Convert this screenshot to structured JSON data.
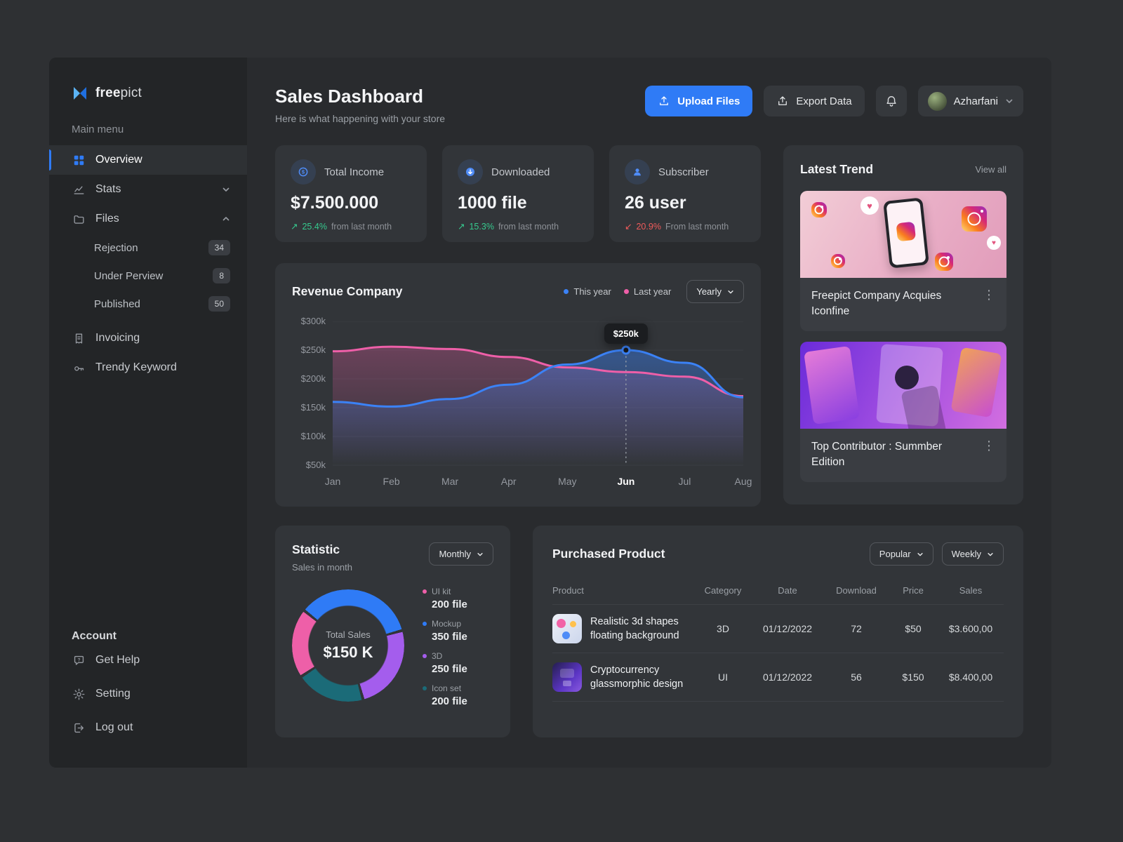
{
  "colors": {
    "accent": "#2f7bf6",
    "green": "#36c98e",
    "red": "#ef5b5b",
    "chart_blue": "#3b82f6",
    "chart_pink": "#ee5fa8"
  },
  "sidebar": {
    "brand": {
      "bold": "free",
      "light": "pict"
    },
    "menu_label": "Main menu",
    "items": [
      {
        "label": "Overview"
      },
      {
        "label": "Stats"
      },
      {
        "label": "Files"
      },
      {
        "label": "Invoicing"
      },
      {
        "label": "Trendy Keyword"
      }
    ],
    "files_children": [
      {
        "label": "Rejection",
        "badge": "34"
      },
      {
        "label": "Under Perview",
        "badge": "8"
      },
      {
        "label": "Published",
        "badge": "50"
      }
    ],
    "account_label": "Account",
    "account_items": [
      {
        "label": "Get Help"
      },
      {
        "label": "Setting"
      },
      {
        "label": "Log out"
      }
    ]
  },
  "header": {
    "title": "Sales Dashboard",
    "subtitle": "Here is what happening with your store",
    "upload_label": "Upload Files",
    "export_label": "Export Data",
    "user_name": "Azharfani"
  },
  "stats": [
    {
      "label": "Total Income",
      "value": "$7.500.000",
      "arrow": "↗",
      "delta": "25.4%",
      "note": "from last month",
      "delta_color": "#36c98e"
    },
    {
      "label": "Downloaded",
      "value": "1000 file",
      "arrow": "↗",
      "delta": "15.3%",
      "note": "from last month",
      "delta_color": "#36c98e"
    },
    {
      "label": "Subscriber",
      "value": "26 user",
      "arrow": "↙",
      "delta": "20.9%",
      "note": "From last month",
      "delta_color": "#ef5b5b"
    }
  ],
  "trend": {
    "title": "Latest Trend",
    "view_all": "View all",
    "items": [
      {
        "title": "Freepict Company Acquies Iconfine"
      },
      {
        "title": "Top Contributor : Summber Edition"
      }
    ]
  },
  "purchased": {
    "title": "Purchased Product",
    "filters": [
      "Popular",
      "Weekly"
    ],
    "columns": [
      "Product",
      "Category",
      "Date",
      "Download",
      "Price",
      "Sales"
    ],
    "rows": [
      {
        "product": "Realistic 3d shapes floating background",
        "category": "3D",
        "date": "01/12/2022",
        "download": "72",
        "price": "$50",
        "sales": "$3.600,00"
      },
      {
        "product": "Cryptocurrency glassmorphic design",
        "category": "UI",
        "date": "01/12/2022",
        "download": "56",
        "price": "$150",
        "sales": "$8.400,00"
      }
    ]
  },
  "chart_data": [
    {
      "type": "line",
      "title": "Revenue Company",
      "range_label": "Yearly",
      "x": [
        "Jan",
        "Feb",
        "Mar",
        "Apr",
        "May",
        "Jun",
        "Jul",
        "Aug"
      ],
      "series": [
        {
          "name": "This year",
          "color": "#3b82f6",
          "values": [
            160,
            152,
            165,
            190,
            225,
            250,
            228,
            168
          ]
        },
        {
          "name": "Last year",
          "color": "#ee5fa8",
          "values": [
            248,
            256,
            252,
            238,
            220,
            212,
            204,
            170
          ]
        }
      ],
      "ylim": [
        50,
        300
      ],
      "yticks": [
        300,
        250,
        200,
        150,
        100,
        50
      ],
      "ytick_labels": [
        "$300k",
        "$250k",
        "$200k",
        "$150k",
        "$100k",
        "$50k"
      ],
      "highlight": {
        "series": "This year",
        "index": 5,
        "label": "$250k"
      }
    },
    {
      "type": "donut",
      "title": "Statistic",
      "subtitle": "Sales in month",
      "range_label": "Monthly",
      "center_label": "Total Sales",
      "center_value": "$150 K",
      "start_angle": -50,
      "arc_order": [
        1,
        2,
        3,
        0
      ],
      "segments": [
        {
          "label": "UI kit",
          "value": 200,
          "display": "200 file",
          "color": "#ee5fa8"
        },
        {
          "label": "Mockup",
          "value": 350,
          "display": "350 file",
          "color": "#2f7bf6"
        },
        {
          "label": "3D",
          "value": 250,
          "display": "250 file",
          "color": "#a45ded"
        },
        {
          "label": "Icon set",
          "value": 200,
          "display": "200 file",
          "color": "#1b6b78"
        }
      ]
    }
  ]
}
